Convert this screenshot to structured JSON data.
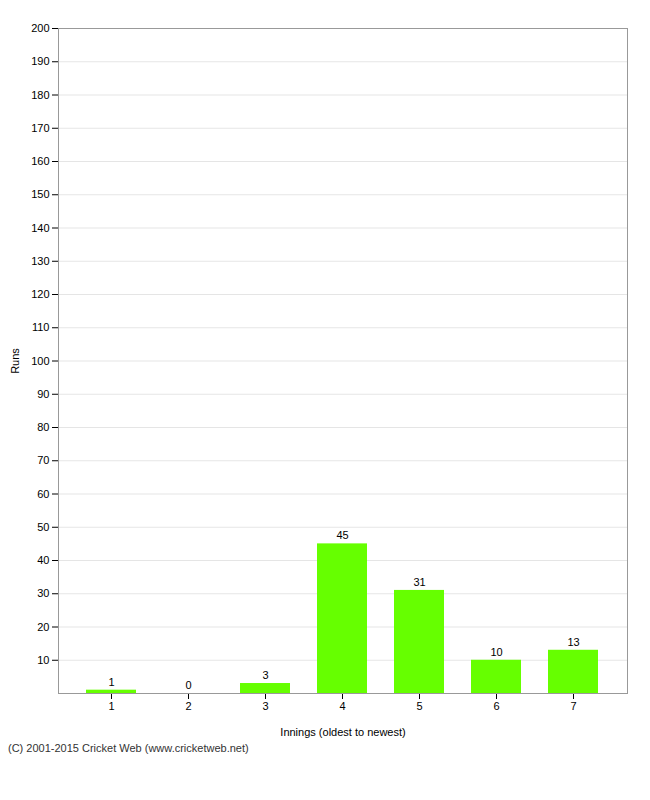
{
  "chart_data": {
    "type": "bar",
    "categories": [
      "1",
      "2",
      "3",
      "4",
      "5",
      "6",
      "7"
    ],
    "values": [
      1,
      0,
      3,
      45,
      31,
      10,
      13
    ],
    "color": "#66ff00",
    "xlabel": "Innings (oldest to newest)",
    "ylabel": "Runs",
    "ylim": [
      0,
      200
    ],
    "yticks": [
      10,
      20,
      30,
      40,
      50,
      60,
      70,
      80,
      90,
      100,
      110,
      120,
      130,
      140,
      150,
      160,
      170,
      180,
      190,
      200
    ],
    "grid": true,
    "data_labels": true,
    "annotations": [
      "(C) 2001-2015 Cricket Web (www.cricketweb.net)"
    ]
  }
}
